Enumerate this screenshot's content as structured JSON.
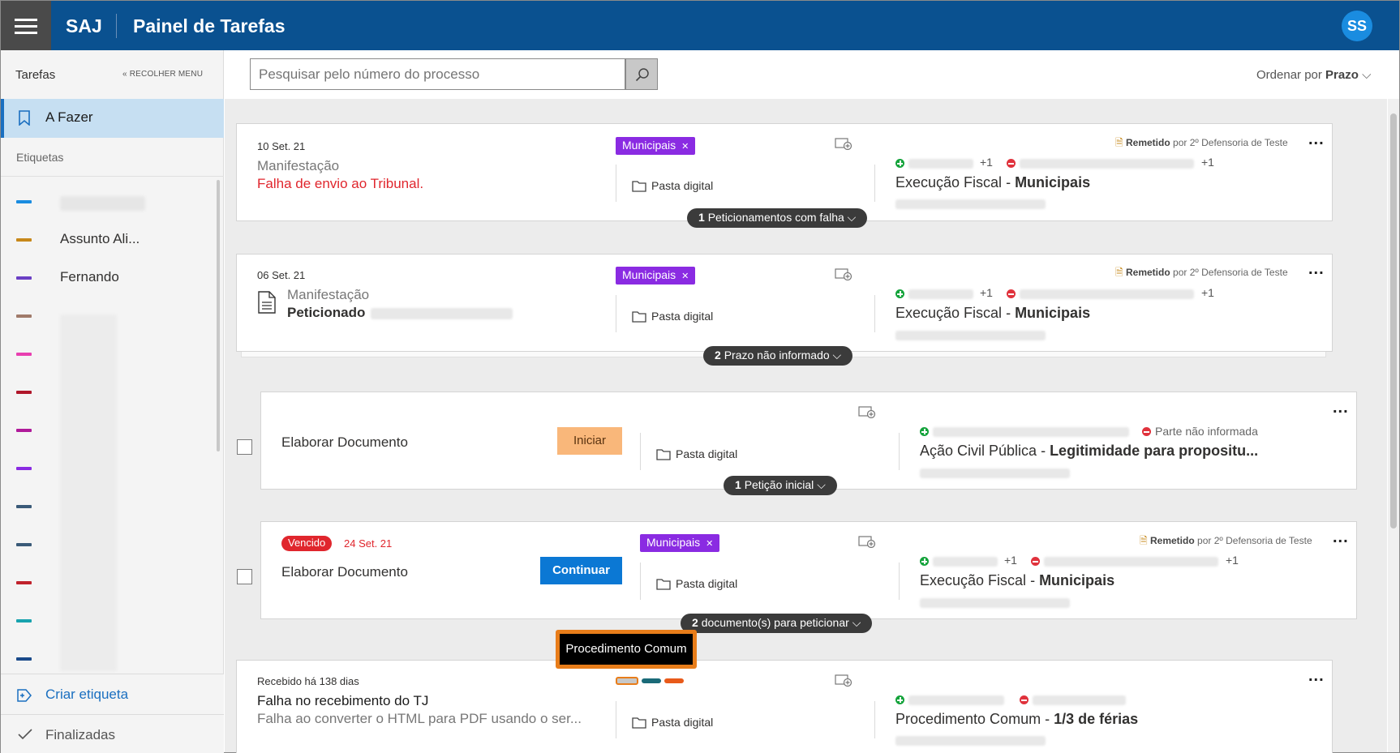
{
  "header": {
    "brand": "SAJ",
    "title": "Painel de Tarefas",
    "avatar_initials": "SS",
    "color": "#0a5190"
  },
  "sidebar": {
    "title": "Tarefas",
    "collapse_label": "RECOLHER MENU",
    "active_item": "A Fazer",
    "section_label": "Etiquetas",
    "labels": [
      {
        "color": "#1a8ce0",
        "text": ""
      },
      {
        "color": "#c7881a",
        "text": "Assunto Ali..."
      },
      {
        "color": "#6a3fc4",
        "text": "Fernando"
      },
      {
        "color": "#a07a6a",
        "text": ""
      },
      {
        "color": "#e83fb0",
        "text": ""
      },
      {
        "color": "#b0162a",
        "text": ""
      },
      {
        "color": "#b01a9a",
        "text": ""
      },
      {
        "color": "#8a2be2",
        "text": ""
      },
      {
        "color": "#3a5a78",
        "text": ""
      },
      {
        "color": "#3a5a78",
        "text": ""
      },
      {
        "color": "#c0222c",
        "text": ""
      },
      {
        "color": "#18a3ae",
        "text": ""
      },
      {
        "color": "#1a4a8a",
        "text": ""
      }
    ],
    "create_label": "Criar etiqueta",
    "finished_label": "Finalizadas"
  },
  "toolbar": {
    "search_placeholder": "Pesquisar pelo número do processo",
    "order_prefix": "Ordenar por",
    "order_value": "Prazo"
  },
  "cards": [
    {
      "date": "10 Set. 21",
      "type": "Manifestação",
      "status": "Falha de envio ao Tribunal.",
      "tag": "Municipais",
      "folder": "Pasta digital",
      "remetido_label": "Remetido",
      "remetido_by": "por 2º Defensoria de Teste",
      "plus_count": "+1",
      "minus_count": "+1",
      "class": "Execução Fiscal",
      "subject": "Municipais",
      "pill_count": "1",
      "pill_text": "Peticionamentos com falha"
    },
    {
      "date": "06 Set. 21",
      "type": "Manifestação",
      "status": "Peticionado",
      "tag": "Municipais",
      "folder": "Pasta digital",
      "remetido_label": "Remetido",
      "remetido_by": "por 2º Defensoria de Teste",
      "plus_count": "+1",
      "minus_count": "+1",
      "class": "Execução Fiscal",
      "subject": "Municipais",
      "pill_count": "2",
      "pill_text": "Prazo não informado"
    },
    {
      "title": "Elaborar Documento",
      "button": "Iniciar",
      "folder": "Pasta digital",
      "parte": "Parte não informada",
      "class": "Ação Civil Pública",
      "subject": "Legitimidade para propositu...",
      "pill_count": "1",
      "pill_text": "Petição inicial"
    },
    {
      "badge": "Vencido",
      "date": "24 Set. 21",
      "title": "Elaborar Documento",
      "button": "Continuar",
      "tag": "Municipais",
      "folder": "Pasta digital",
      "remetido_label": "Remetido",
      "remetido_by": "por 2º Defensoria de Teste",
      "plus_count": "+1",
      "minus_count": "+1",
      "class": "Execução Fiscal",
      "subject": "Municipais",
      "pill_count": "2",
      "pill_text": "documento(s) para peticionar"
    },
    {
      "date": "Recebido há 138 dias",
      "title": "Falha no recebimento do TJ",
      "subtitle": "Falha ao converter o HTML para PDF usando o ser...",
      "folder": "Pasta digital",
      "class": "Procedimento Comum",
      "subject": "1/3 de férias",
      "tooltip": "Procedimento Comum",
      "mini_tag_colors": [
        "#c8c8c8",
        "#1a6a78",
        "#e85a1a"
      ]
    }
  ]
}
